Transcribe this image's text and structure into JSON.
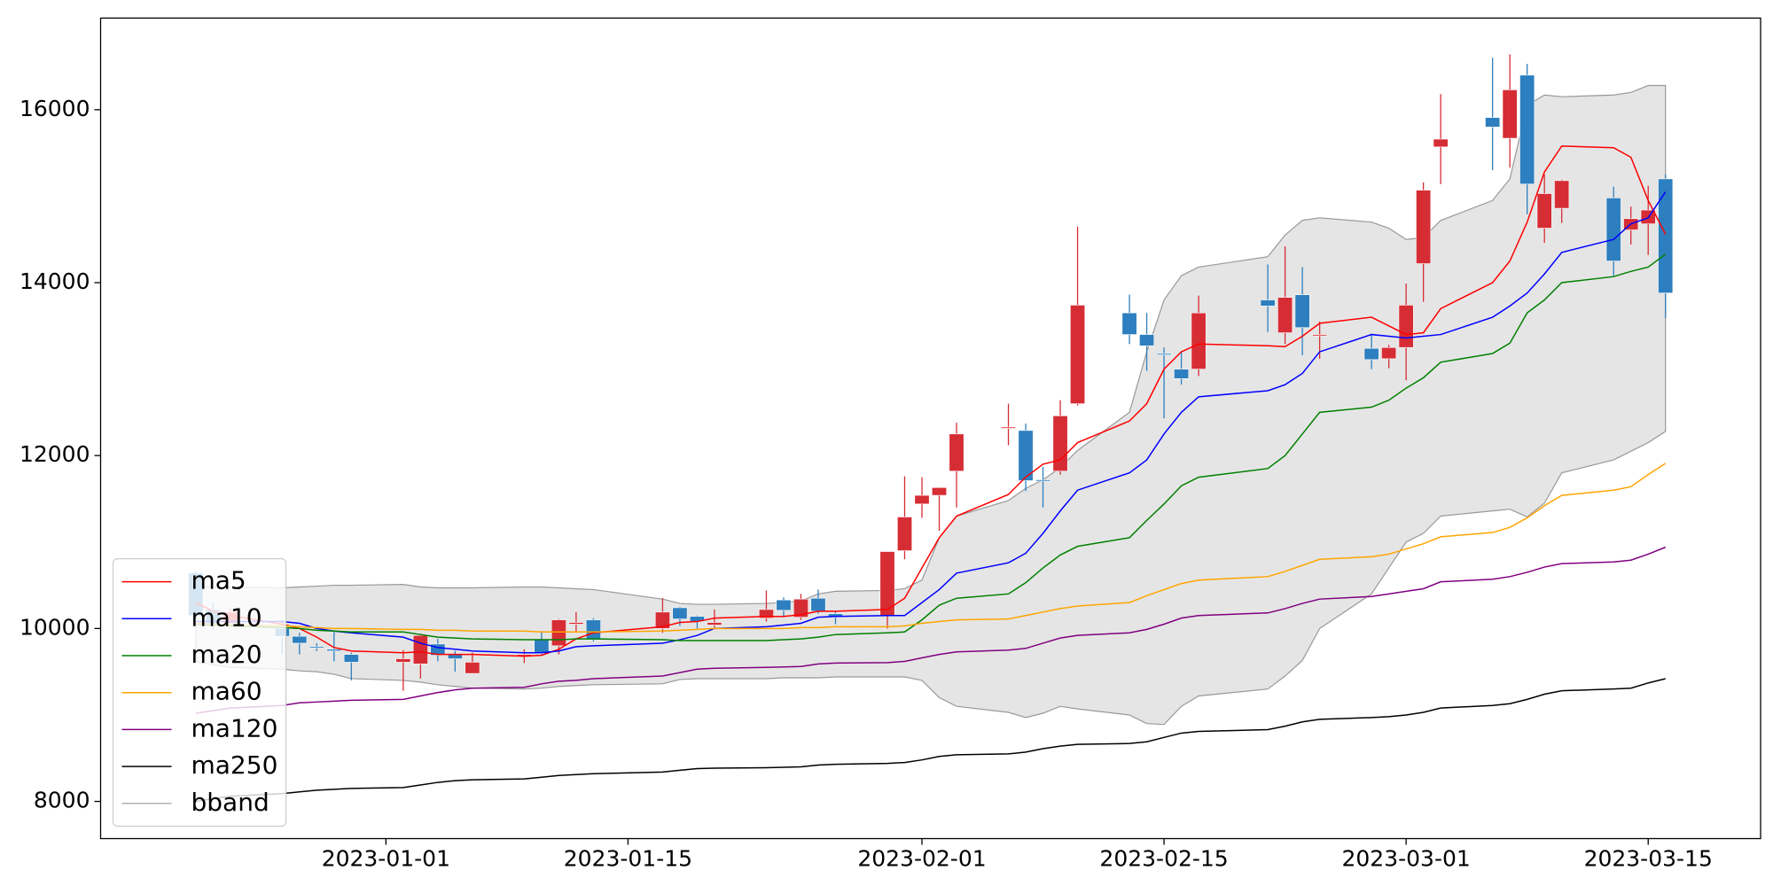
{
  "chart_data": {
    "type": "candlestick",
    "x": [
      "2022-12-21",
      "2022-12-22",
      "2022-12-23",
      "2022-12-26",
      "2022-12-27",
      "2022-12-28",
      "2022-12-29",
      "2022-12-30",
      "2023-01-02",
      "2023-01-03",
      "2023-01-04",
      "2023-01-05",
      "2023-01-06",
      "2023-01-09",
      "2023-01-10",
      "2023-01-11",
      "2023-01-12",
      "2023-01-13",
      "2023-01-17",
      "2023-01-18",
      "2023-01-19",
      "2023-01-20",
      "2023-01-23",
      "2023-01-24",
      "2023-01-25",
      "2023-01-26",
      "2023-01-27",
      "2023-01-30",
      "2023-01-31",
      "2023-02-01",
      "2023-02-02",
      "2023-02-03",
      "2023-02-06",
      "2023-02-07",
      "2023-02-08",
      "2023-02-09",
      "2023-02-10",
      "2023-02-13",
      "2023-02-14",
      "2023-02-15",
      "2023-02-16",
      "2023-02-17",
      "2023-02-21",
      "2023-02-22",
      "2023-02-23",
      "2023-02-24",
      "2023-02-27",
      "2023-02-28",
      "2023-03-01",
      "2023-03-02",
      "2023-03-03",
      "2023-03-06",
      "2023-03-07",
      "2023-03-08",
      "2023-03-09",
      "2023-03-10",
      "2023-03-13",
      "2023-03-14",
      "2023-03-15",
      "2023-03-16"
    ],
    "open": [
      10640,
      10220,
      10060,
      10000,
      9910,
      9790,
      9760,
      9700,
      9610,
      9590,
      9820,
      9700,
      9480,
      9690,
      9870,
      9800,
      10050,
      10100,
      10000,
      10240,
      10140,
      10040,
      10120,
      10330,
      10130,
      10350,
      10170,
      10150,
      10900,
      11440,
      11540,
      11820,
      12320,
      12290,
      11720,
      11820,
      12600,
      13650,
      13400,
      13180,
      13000,
      13000,
      13800,
      13420,
      13860,
      13390,
      13240,
      13120,
      13250,
      14220,
      15570,
      15910,
      15670,
      16400,
      14630,
      14860,
      14980,
      14610,
      14680,
      15200
    ],
    "high": [
      10660,
      10300,
      10230,
      10100,
      9950,
      9830,
      9960,
      9720,
      9750,
      9940,
      9880,
      9740,
      9720,
      9760,
      9970,
      10110,
      10190,
      10120,
      10350,
      10250,
      10150,
      10220,
      10440,
      10360,
      10400,
      10450,
      10200,
      10890,
      11760,
      11750,
      11630,
      12380,
      12600,
      12370,
      11870,
      12640,
      14650,
      13860,
      13650,
      13250,
      13210,
      13850,
      14210,
      14420,
      14180,
      13550,
      13410,
      13280,
      13990,
      15160,
      16180,
      16600,
      16640,
      16530,
      15250,
      15190,
      15110,
      14880,
      15120,
      15250
    ],
    "low": [
      10100,
      9980,
      10030,
      9700,
      9700,
      9740,
      9620,
      9400,
      9280,
      9420,
      9620,
      9500,
      9480,
      9600,
      9700,
      9700,
      9960,
      9850,
      9950,
      10030,
      10000,
      10010,
      10080,
      10130,
      10100,
      10170,
      10050,
      10000,
      10800,
      11280,
      11130,
      11400,
      12120,
      11590,
      11400,
      11780,
      12580,
      13290,
      12980,
      12430,
      12820,
      12920,
      13430,
      13290,
      13160,
      13120,
      13000,
      13010,
      12870,
      13780,
      15140,
      15300,
      15330,
      14790,
      14460,
      14690,
      14080,
      14440,
      14320,
      13590
    ],
    "close": [
      10150,
      10040,
      10190,
      9910,
      9830,
      9780,
      9740,
      9610,
      9650,
      9920,
      9690,
      9650,
      9610,
      9700,
      9710,
      10100,
      10070,
      9870,
      10190,
      10110,
      10080,
      10070,
      10220,
      10210,
      10340,
      10200,
      10130,
      10890,
      11290,
      11540,
      11630,
      12250,
      12330,
      11710,
      11710,
      12460,
      13740,
      13400,
      13270,
      13170,
      12890,
      13650,
      13730,
      13830,
      13480,
      13400,
      13110,
      13250,
      13740,
      15070,
      15660,
      15800,
      16230,
      15140,
      15030,
      15180,
      14250,
      14740,
      14840,
      13880
    ],
    "up_color": "#d62d35",
    "down_color": "#2d7fbf",
    "series": [
      {
        "name": "ma5",
        "color": "#ff0000",
        "values": [
          10300,
          10200,
          10150,
          10050,
          10000,
          9900,
          9780,
          9740,
          9720,
          9730,
          9700,
          9700,
          9700,
          9680,
          9690,
          9760,
          9880,
          9950,
          10020,
          10070,
          10080,
          10120,
          10140,
          10140,
          10160,
          10200,
          10200,
          10220,
          10350,
          10700,
          11050,
          11300,
          11550,
          11750,
          11900,
          11950,
          12150,
          12400,
          12600,
          13000,
          13200,
          13290,
          13270,
          13260,
          13380,
          13530,
          13600,
          13500,
          13400,
          13420,
          13700,
          14000,
          14250,
          14700,
          15280,
          15580,
          15560,
          15450,
          14950,
          14560
        ]
      },
      {
        "name": "ma10",
        "color": "#0000ff",
        "values": [
          10080,
          10080,
          10080,
          10080,
          10060,
          10000,
          9970,
          9950,
          9900,
          9830,
          9780,
          9760,
          9740,
          9720,
          9720,
          9740,
          9790,
          9800,
          9830,
          9870,
          9920,
          10000,
          10020,
          10040,
          10060,
          10130,
          10140,
          10150,
          10150,
          10300,
          10450,
          10640,
          10760,
          10870,
          11100,
          11360,
          11600,
          11800,
          11950,
          12250,
          12500,
          12680,
          12750,
          12820,
          12950,
          13200,
          13400,
          13380,
          13360,
          13380,
          13400,
          13600,
          13730,
          13880,
          14100,
          14350,
          14500,
          14680,
          14750,
          15050
        ]
      },
      {
        "name": "ma20",
        "color": "#008000",
        "values": [
          10050,
          10040,
          10030,
          10010,
          10000,
          9980,
          9970,
          9960,
          9960,
          9930,
          9900,
          9890,
          9880,
          9870,
          9870,
          9870,
          9880,
          9880,
          9870,
          9860,
          9860,
          9860,
          9860,
          9870,
          9880,
          9900,
          9930,
          9950,
          9960,
          10100,
          10270,
          10350,
          10400,
          10530,
          10700,
          10850,
          10950,
          11050,
          11250,
          11440,
          11650,
          11750,
          11850,
          12000,
          12250,
          12500,
          12560,
          12640,
          12780,
          12900,
          13080,
          13180,
          13300,
          13650,
          13800,
          14000,
          14070,
          14130,
          14180,
          14330
        ]
      },
      {
        "name": "ma60",
        "color": "#ffa500",
        "values": [
          10060,
          10050,
          10040,
          10030,
          10020,
          10010,
          10000,
          10000,
          9990,
          9990,
          9980,
          9980,
          9970,
          9970,
          9960,
          9960,
          9960,
          9960,
          9970,
          9980,
          9990,
          10000,
          10000,
          10000,
          10010,
          10010,
          10020,
          10020,
          10030,
          10060,
          10080,
          10100,
          10110,
          10150,
          10190,
          10230,
          10260,
          10300,
          10380,
          10450,
          10520,
          10560,
          10600,
          10660,
          10730,
          10800,
          10830,
          10860,
          10920,
          10980,
          11060,
          11110,
          11170,
          11280,
          11420,
          11540,
          11600,
          11640,
          11780,
          11910
        ]
      },
      {
        "name": "ma120",
        "color": "#800080",
        "values": [
          9020,
          9050,
          9080,
          9110,
          9140,
          9150,
          9160,
          9170,
          9180,
          9220,
          9260,
          9290,
          9310,
          9320,
          9360,
          9390,
          9400,
          9420,
          9450,
          9490,
          9530,
          9540,
          9550,
          9555,
          9560,
          9590,
          9600,
          9605,
          9620,
          9660,
          9700,
          9730,
          9750,
          9770,
          9830,
          9890,
          9920,
          9950,
          9990,
          10050,
          10120,
          10150,
          10180,
          10230,
          10290,
          10340,
          10370,
          10400,
          10430,
          10460,
          10540,
          10570,
          10600,
          10650,
          10710,
          10750,
          10770,
          10790,
          10860,
          10940
        ]
      },
      {
        "name": "ma250",
        "color": "#000000",
        "values": [
          8000,
          8030,
          8060,
          8090,
          8110,
          8130,
          8140,
          8150,
          8160,
          8190,
          8220,
          8240,
          8250,
          8260,
          8280,
          8300,
          8310,
          8320,
          8340,
          8360,
          8380,
          8385,
          8390,
          8395,
          8400,
          8420,
          8430,
          8440,
          8450,
          8480,
          8520,
          8540,
          8550,
          8570,
          8610,
          8640,
          8660,
          8670,
          8690,
          8740,
          8790,
          8810,
          8830,
          8870,
          8920,
          8950,
          8970,
          8980,
          9000,
          9030,
          9080,
          9110,
          9130,
          9180,
          9240,
          9280,
          9300,
          9310,
          9370,
          9420
        ]
      }
    ],
    "bband": {
      "name": "bband",
      "color": "#999999",
      "fill": "#e5e5e5",
      "upper": [
        10480,
        10480,
        10480,
        10470,
        10480,
        10490,
        10500,
        10500,
        10510,
        10480,
        10470,
        10470,
        10470,
        10480,
        10480,
        10470,
        10460,
        10450,
        10340,
        10290,
        10280,
        10280,
        10290,
        10300,
        10320,
        10400,
        10430,
        10440,
        10460,
        10560,
        11050,
        11300,
        11480,
        11620,
        11720,
        11860,
        12060,
        12500,
        13200,
        13800,
        14080,
        14180,
        14300,
        14550,
        14720,
        14750,
        14700,
        14630,
        14500,
        14520,
        14720,
        14950,
        15200,
        16050,
        16170,
        16150,
        16170,
        16200,
        16280,
        16280
      ],
      "lower": [
        9620,
        9580,
        9550,
        9530,
        9510,
        9500,
        9470,
        9420,
        9400,
        9380,
        9350,
        9330,
        9310,
        9300,
        9310,
        9330,
        9340,
        9350,
        9360,
        9410,
        9420,
        9420,
        9420,
        9430,
        9430,
        9430,
        9440,
        9440,
        9440,
        9400,
        9200,
        9100,
        9030,
        8970,
        9020,
        9100,
        9070,
        9000,
        8900,
        8890,
        9100,
        9220,
        9300,
        9450,
        9630,
        10000,
        10400,
        10700,
        11000,
        11100,
        11300,
        11360,
        11380,
        11290,
        11450,
        11800,
        11950,
        12050,
        12150,
        12280
      ]
    },
    "xlim": [
      "2022-12-15T12:00Z",
      "2023-03-21T12:00Z"
    ],
    "xticks": [
      "2023-01-01",
      "2023-01-15",
      "2023-02-01",
      "2023-02-15",
      "2023-03-01",
      "2023-03-15"
    ],
    "ylim": [
      7570,
      17060
    ],
    "yticks": [
      8000,
      10000,
      12000,
      14000,
      16000
    ],
    "legend": "lower left"
  }
}
